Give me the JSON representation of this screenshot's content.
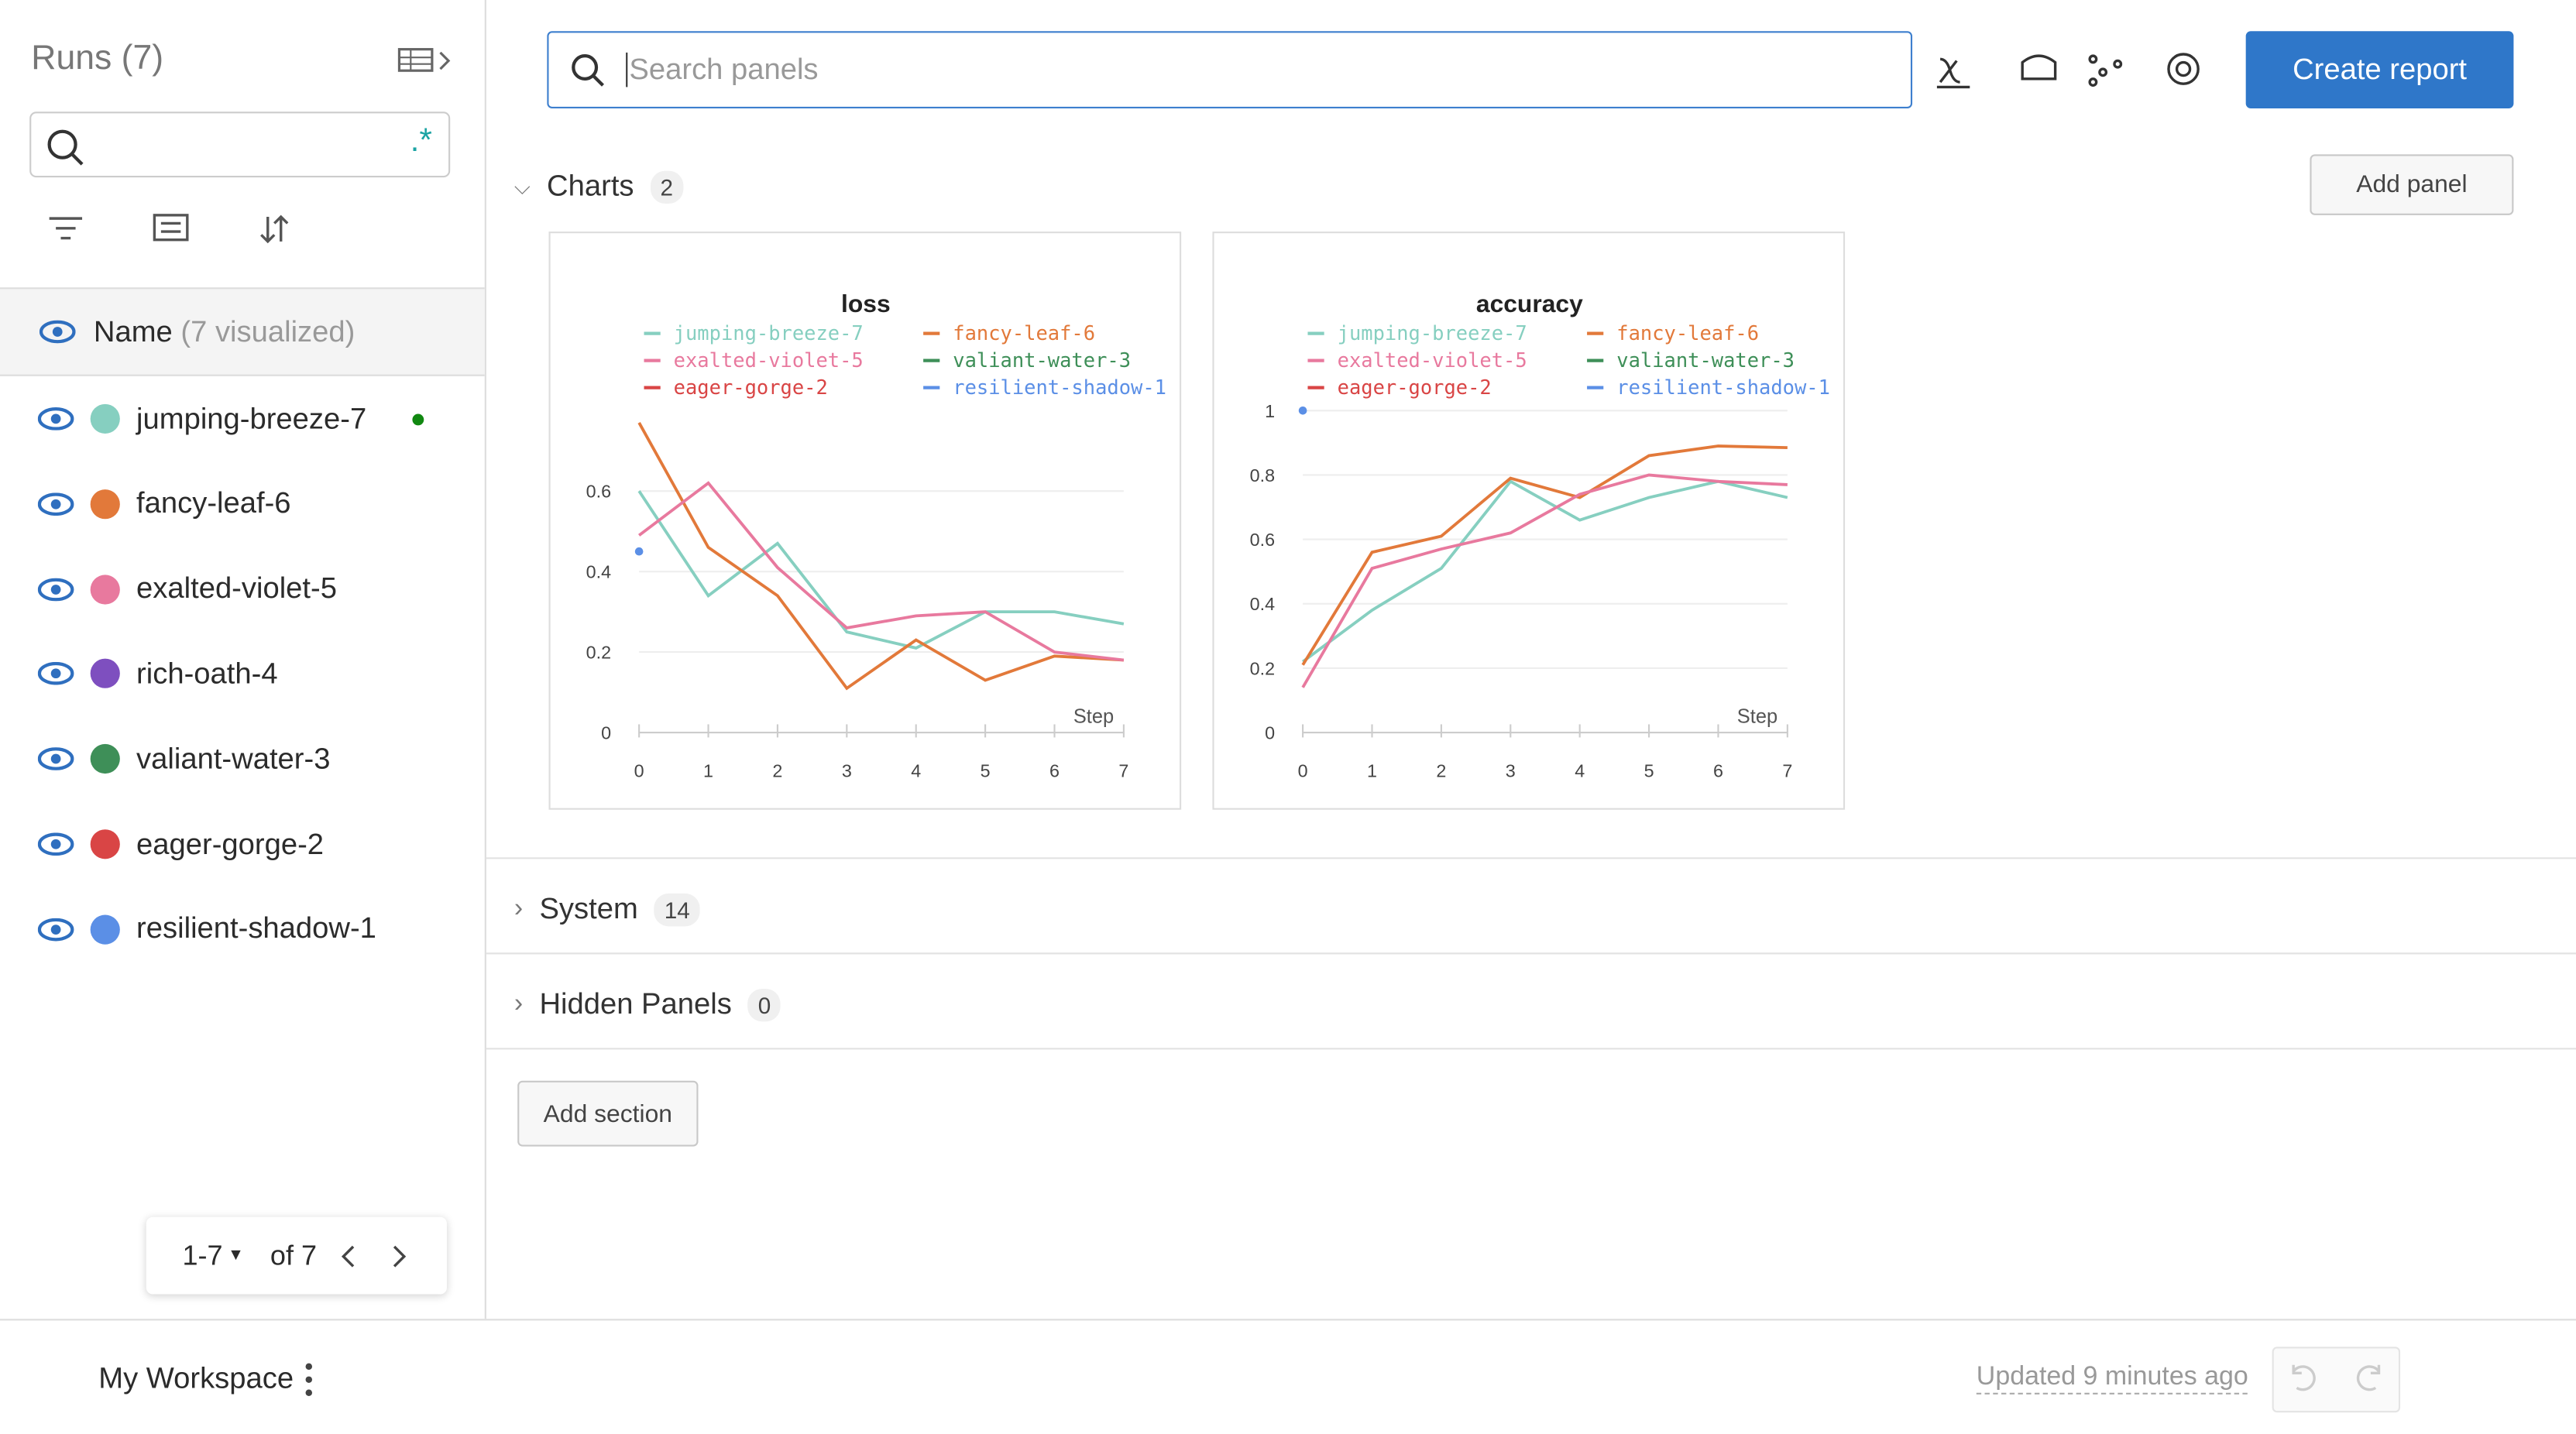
{
  "sidebar": {
    "title": "Runs (7)",
    "name_header": "Name",
    "visualized": "(7 visualized)",
    "regex_icon": ".*",
    "runs": [
      {
        "name": "jumping-breeze-7",
        "color": "#86cfc0"
      },
      {
        "name": "fancy-leaf-6",
        "color": "#e2793a"
      },
      {
        "name": "exalted-violet-5",
        "color": "#e8799e"
      },
      {
        "name": "rich-oath-4",
        "color": "#7e4fbf"
      },
      {
        "name": "valiant-water-3",
        "color": "#3e8f58"
      },
      {
        "name": "eager-gorge-2",
        "color": "#d94545"
      },
      {
        "name": "resilient-shadow-1",
        "color": "#5b8fe6"
      }
    ],
    "pager": {
      "range": "1-7",
      "total": "of 7"
    }
  },
  "toolbar": {
    "search_placeholder": "Search panels",
    "create_report": "Create report"
  },
  "sections": [
    {
      "name": "Charts",
      "count": "2",
      "action": "Add panel"
    },
    {
      "name": "System",
      "count": "14"
    },
    {
      "name": "Hidden Panels",
      "count": "0"
    }
  ],
  "add_section": "Add section",
  "footer": {
    "workspace": "My Workspace",
    "updated": "Updated 9 minutes ago"
  },
  "chart_data": [
    {
      "type": "line",
      "title": "loss",
      "x_label": "Step",
      "x": [
        0,
        1,
        2,
        3,
        4,
        5,
        6,
        7
      ],
      "xlim": [
        0,
        7
      ],
      "xticks": [
        0,
        1,
        2,
        3,
        4,
        5,
        6,
        7
      ],
      "ylim": [
        0,
        0.8
      ],
      "yticks": [
        0,
        0.2,
        0.4,
        0.6
      ],
      "grid": true,
      "series": [
        {
          "name": "jumping-breeze-7",
          "color": "#86cfc0",
          "values": [
            0.6,
            0.34,
            0.47,
            0.25,
            0.21,
            0.3,
            0.3,
            0.27
          ]
        },
        {
          "name": "fancy-leaf-6",
          "color": "#e2793a",
          "values": [
            0.77,
            0.46,
            0.34,
            0.11,
            0.23,
            0.13,
            0.19,
            0.18
          ]
        },
        {
          "name": "exalted-violet-5",
          "color": "#e8799e",
          "values": [
            0.49,
            0.62,
            0.41,
            0.26,
            0.29,
            0.3,
            0.2,
            0.18
          ]
        },
        {
          "name": "valiant-water-3",
          "color": "#3e8f58",
          "values": [
            null,
            null,
            null,
            null,
            null,
            null,
            null,
            null
          ]
        },
        {
          "name": "eager-gorge-2",
          "color": "#d94545",
          "values": [
            null,
            null,
            null,
            null,
            null,
            null,
            null,
            null
          ]
        },
        {
          "name": "resilient-shadow-1",
          "color": "#5b8fe6",
          "values": [
            0.45,
            null,
            null,
            null,
            null,
            null,
            null,
            null
          ]
        }
      ]
    },
    {
      "type": "line",
      "title": "accuracy",
      "x_label": "Step",
      "x": [
        0,
        1,
        2,
        3,
        4,
        5,
        6,
        7
      ],
      "xlim": [
        0,
        7
      ],
      "xticks": [
        0,
        1,
        2,
        3,
        4,
        5,
        6,
        7
      ],
      "ylim": [
        0,
        1
      ],
      "yticks": [
        0,
        0.2,
        0.4,
        0.6,
        0.8,
        1
      ],
      "grid": true,
      "series": [
        {
          "name": "jumping-breeze-7",
          "color": "#86cfc0",
          "values": [
            0.22,
            0.38,
            0.51,
            0.78,
            0.66,
            0.73,
            0.78,
            0.73
          ]
        },
        {
          "name": "fancy-leaf-6",
          "color": "#e2793a",
          "values": [
            0.21,
            0.56,
            0.61,
            0.79,
            0.73,
            0.86,
            0.89,
            0.885
          ]
        },
        {
          "name": "exalted-violet-5",
          "color": "#e8799e",
          "values": [
            0.14,
            0.51,
            0.57,
            0.62,
            0.74,
            0.8,
            0.78,
            0.77
          ]
        },
        {
          "name": "valiant-water-3",
          "color": "#3e8f58",
          "values": [
            null,
            null,
            null,
            null,
            null,
            null,
            null,
            null
          ]
        },
        {
          "name": "eager-gorge-2",
          "color": "#d94545",
          "values": [
            null,
            null,
            null,
            null,
            null,
            null,
            null,
            null
          ]
        },
        {
          "name": "resilient-shadow-1",
          "color": "#5b8fe6",
          "values": [
            1,
            null,
            null,
            null,
            null,
            null,
            null,
            null
          ]
        }
      ]
    }
  ]
}
